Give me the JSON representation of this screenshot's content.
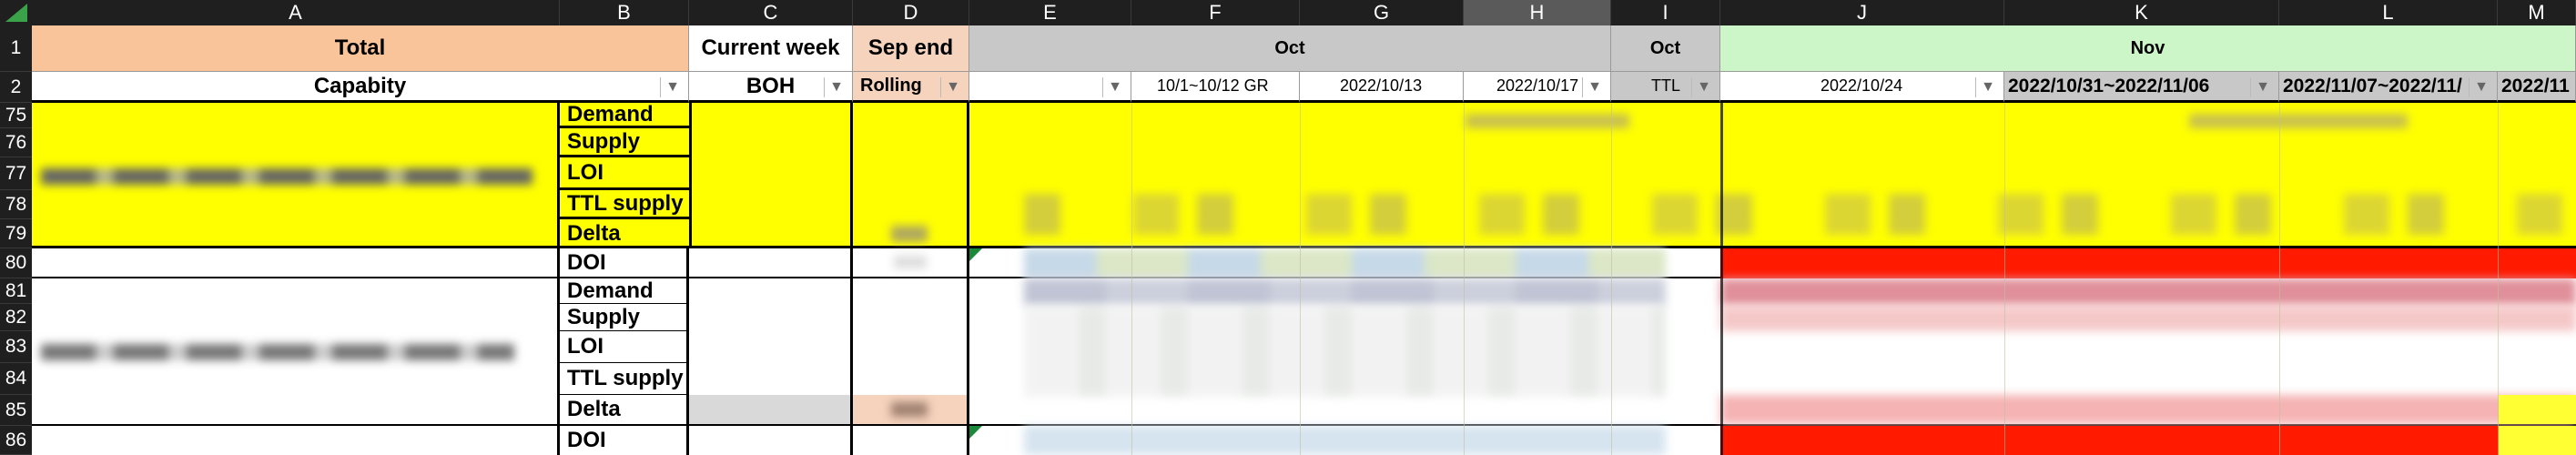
{
  "columns": [
    "A",
    "B",
    "C",
    "D",
    "E",
    "F",
    "G",
    "H",
    "I",
    "J",
    "K",
    "L",
    "M"
  ],
  "rows": [
    "1",
    "2",
    "75",
    "76",
    "77",
    "78",
    "79",
    "80",
    "81",
    "82",
    "83",
    "84",
    "85",
    "86"
  ],
  "header_row1": {
    "A": "Total",
    "C": "Current week",
    "D": "Sep end",
    "oct_group": "Oct",
    "I": "Oct",
    "nov_group": "Nov"
  },
  "header_row2": {
    "A": "Capabity",
    "C": "BOH",
    "D": "Rolling",
    "F": "10/1~10/12 GR",
    "G": "2022/10/13",
    "H": "2022/10/17",
    "I": "TTL",
    "J": "2022/10/24",
    "K": "2022/10/31~2022/11/06",
    "L": "2022/11/07~2022/11/",
    "M": "2022/11"
  },
  "block1_labels": [
    "Demand",
    "Supply",
    "LOI",
    "TTL supply",
    "Delta"
  ],
  "block1_doi": "DOI",
  "block2_labels": [
    "Demand",
    "Supply",
    "LOI",
    "TTL supply",
    "Delta"
  ],
  "block2_doi": "DOI",
  "colors": {
    "header_dark": "#1f1f1f",
    "total_orange": "#f9c49a",
    "sep_end_peach": "#f5d3bd",
    "oct_gray": "#c8c8c8",
    "nov_green": "#ccf5c8",
    "yellow": "#ffff00",
    "red": "#ff1a00",
    "pale_red": "#f5b3b3"
  }
}
